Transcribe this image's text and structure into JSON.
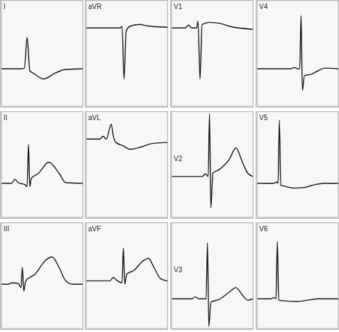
{
  "chart_data": [
    {
      "type": "line",
      "title": "I",
      "x": [
        0,
        224,
        272,
        304,
        336,
        384,
        496,
        640,
        760,
        960
      ],
      "values": [
        0,
        0,
        0.02,
        0.92,
        -0.06,
        -0.14,
        -0.3,
        -0.12,
        -0.02,
        0
      ],
      "xlim": [
        0,
        960
      ],
      "ylim": [
        -1.1,
        2.0
      ],
      "xticks": [
        0,
        200,
        400,
        600,
        800
      ],
      "yticks": [
        -1,
        -0.5,
        0,
        0.5,
        1,
        1.5,
        2
      ],
      "grid": true,
      "tick_labels": false,
      "color": "#111111"
    },
    {
      "type": "line",
      "title": "aVR",
      "x": [
        0,
        400,
        424,
        448,
        472,
        520,
        640,
        720,
        960
      ],
      "values": [
        0,
        0,
        0.04,
        -1.5,
        -0.1,
        0.05,
        0.1,
        0.06,
        0.02
      ],
      "xlim": [
        0,
        960
      ],
      "ylim": [
        -2.3,
        0.8
      ],
      "xticks": [
        0,
        200,
        400,
        600,
        800
      ],
      "yticks": [
        -2,
        -1.5,
        -1,
        -0.5,
        0,
        0.5
      ],
      "grid": true,
      "tick_labels": false,
      "color": "#111111"
    },
    {
      "type": "line",
      "title": "V1",
      "x": [
        0,
        160,
        200,
        240,
        296,
        312,
        336,
        360,
        440,
        560,
        700,
        960
      ],
      "values": [
        0,
        0,
        0.08,
        0,
        0,
        0.2,
        -1.5,
        0.1,
        0.16,
        0.14,
        0.04,
        -0.04
      ],
      "xlim": [
        0,
        960
      ],
      "ylim": [
        -2.3,
        0.8
      ],
      "xticks": [
        0,
        200,
        400,
        600,
        800
      ],
      "yticks": [
        -2,
        -1.5,
        -1,
        -0.5,
        0,
        0.5
      ],
      "grid": true,
      "tick_labels": false,
      "color": "#111111"
    },
    {
      "type": "line",
      "title": "V4",
      "x": [
        0,
        400,
        440,
        480,
        504,
        520,
        536,
        560,
        640,
        720,
        800,
        960
      ],
      "values": [
        0,
        0,
        0.04,
        0,
        0,
        1.56,
        -0.64,
        -0.2,
        -0.16,
        -0.06,
        0.02,
        0
      ],
      "xlim": [
        0,
        960
      ],
      "ylim": [
        -1.1,
        2.0
      ],
      "xticks": [
        0,
        200,
        400,
        600,
        800
      ],
      "yticks": [
        -1,
        -0.5,
        0,
        0.5,
        1,
        1.5,
        2
      ],
      "grid": true,
      "tick_labels": false,
      "color": "#111111"
    },
    {
      "type": "line",
      "title": "II",
      "x": [
        0,
        120,
        160,
        200,
        280,
        304,
        320,
        336,
        352,
        440,
        560,
        680,
        760,
        960
      ],
      "values": [
        0,
        0,
        0.12,
        0.02,
        -0.04,
        -0.1,
        1.14,
        -0.1,
        0.14,
        0.3,
        0.62,
        0.3,
        0.02,
        0
      ],
      "xlim": [
        0,
        960
      ],
      "ylim": [
        -1.0,
        2.1
      ],
      "xticks": [
        0,
        200,
        400,
        600,
        800
      ],
      "yticks": [
        -1,
        -0.5,
        0,
        0.5,
        1,
        1.5,
        2
      ],
      "grid": true,
      "tick_labels": false,
      "color": "#111111"
    },
    {
      "type": "line",
      "title": "aVL",
      "x": [
        0,
        160,
        200,
        240,
        296,
        320,
        352,
        440,
        520,
        640,
        760,
        960
      ],
      "values": [
        0,
        0,
        0.08,
        0,
        0.44,
        0.1,
        -0.1,
        -0.2,
        -0.3,
        -0.24,
        -0.14,
        -0.1
      ],
      "xlim": [
        0,
        960
      ],
      "ylim": [
        -2.3,
        0.8
      ],
      "xticks": [
        0,
        200,
        400,
        600,
        800
      ],
      "yticks": [
        -2,
        -1.5,
        -1,
        -0.5,
        0,
        0.5
      ],
      "grid": true,
      "tick_labels": false,
      "color": "#111111"
    },
    {
      "type": "line",
      "title": "V2",
      "x": [
        0,
        360,
        400,
        432,
        448,
        464,
        488,
        560,
        680,
        760,
        840,
        900,
        960
      ],
      "values": [
        0,
        0,
        0.08,
        0,
        1.84,
        -0.92,
        0.1,
        0.2,
        0.5,
        0.84,
        0.4,
        0.1,
        0
      ],
      "xlim": [
        0,
        960
      ],
      "ylim": [
        -1.2,
        1.9
      ],
      "xticks": [
        0,
        200,
        400,
        600,
        800
      ],
      "yticks": [
        -1,
        -0.5,
        0,
        0.5,
        1,
        1.5
      ],
      "grid": true,
      "tick_labels": false,
      "color": "#111111"
    },
    {
      "type": "line",
      "title": "V5",
      "x": [
        0,
        200,
        232,
        248,
        264,
        280,
        320,
        440,
        560,
        680,
        800,
        960
      ],
      "values": [
        0,
        0,
        0.04,
        0,
        1.86,
        -0.06,
        -0.08,
        -0.14,
        -0.12,
        -0.04,
        0,
        0
      ],
      "xlim": [
        0,
        960
      ],
      "ylim": [
        -1.0,
        2.1
      ],
      "xticks": [
        0,
        200,
        400,
        600,
        800
      ],
      "yticks": [
        -1,
        -0.5,
        0,
        0.5,
        1,
        1.5,
        2
      ],
      "grid": true,
      "tick_labels": false,
      "color": "#111111"
    },
    {
      "type": "line",
      "title": "III",
      "x": [
        0,
        80,
        120,
        200,
        232,
        248,
        264,
        288,
        400,
        520,
        600,
        680,
        760,
        840,
        960
      ],
      "values": [
        0,
        0,
        0.04,
        0.02,
        -0.1,
        0.5,
        -0.2,
        0.1,
        0.3,
        0.7,
        0.8,
        0.5,
        0.1,
        0,
        0
      ],
      "xlim": [
        0,
        960
      ],
      "ylim": [
        -1.3,
        1.8
      ],
      "xticks": [
        0,
        200,
        400,
        600,
        800
      ],
      "yticks": [
        -1,
        -0.5,
        0,
        0.5,
        1,
        1.5
      ],
      "grid": true,
      "tick_labels": false,
      "color": "#111111"
    },
    {
      "type": "line",
      "title": "aVF",
      "x": [
        0,
        280,
        320,
        360,
        424,
        440,
        456,
        480,
        560,
        680,
        736,
        800,
        880,
        960
      ],
      "values": [
        0,
        0,
        0.1,
        0.02,
        -0.06,
        0.96,
        -0.1,
        0.2,
        0.3,
        0.6,
        0.66,
        0.4,
        0.06,
        0
      ],
      "xlim": [
        0,
        960
      ],
      "ylim": [
        -1.4,
        1.7
      ],
      "xticks": [
        0,
        200,
        400,
        600,
        800
      ],
      "yticks": [
        -1,
        -0.5,
        0,
        0.5,
        1,
        1.5
      ],
      "grid": true,
      "tick_labels": false,
      "color": "#111111"
    },
    {
      "type": "line",
      "title": "V3",
      "x": [
        0,
        240,
        280,
        320,
        408,
        424,
        440,
        464,
        560,
        680,
        760,
        840,
        900,
        960
      ],
      "values": [
        0,
        0,
        0.06,
        0,
        0,
        1.7,
        -0.84,
        -0.1,
        -0.02,
        0.2,
        0.34,
        0.1,
        -0.04,
        0
      ],
      "xlim": [
        0,
        960
      ],
      "ylim": [
        -0.9,
        2.3
      ],
      "xticks": [
        0,
        200,
        400,
        600,
        800
      ],
      "yticks": [
        -0.5,
        0,
        0.5,
        1,
        1.5,
        2
      ],
      "grid": true,
      "tick_labels": false,
      "color": "#111111"
    },
    {
      "type": "line",
      "title": "V6",
      "x": [
        0,
        160,
        200,
        224,
        240,
        256,
        320,
        480,
        600,
        720,
        960
      ],
      "values": [
        0,
        0,
        0.04,
        0,
        1.74,
        -0.04,
        -0.06,
        -0.08,
        -0.04,
        0,
        0
      ],
      "xlim": [
        0,
        960
      ],
      "ylim": [
        -0.9,
        2.3
      ],
      "xticks": [
        0,
        200,
        400,
        600,
        800
      ],
      "yticks": [
        -0.5,
        0,
        0.5,
        1,
        1.5,
        2
      ],
      "grid": true,
      "tick_labels": false,
      "color": "#111111"
    }
  ]
}
